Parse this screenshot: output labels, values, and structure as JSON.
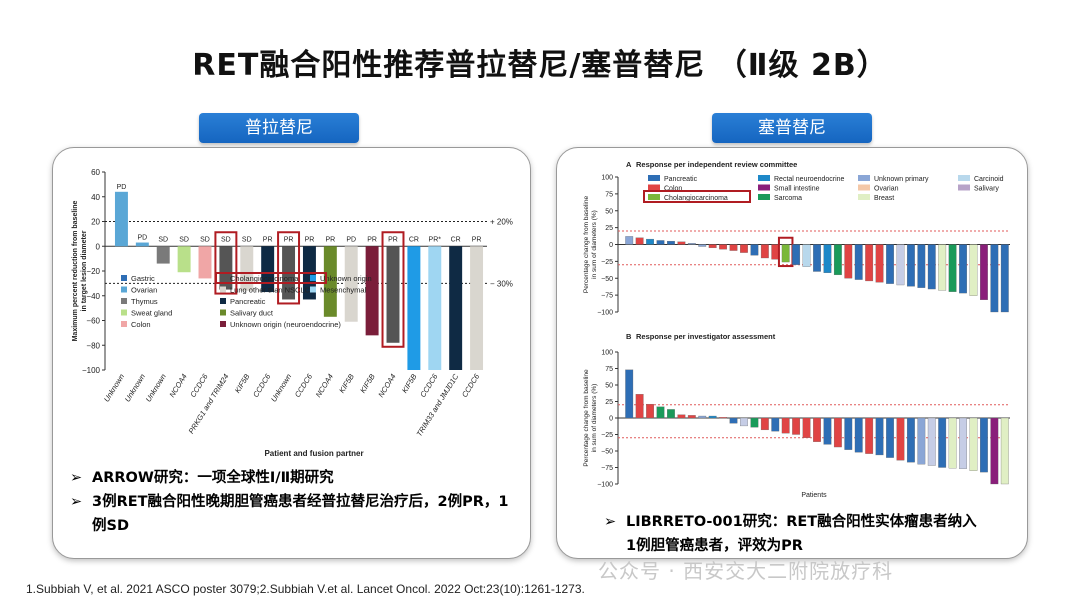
{
  "title": "RET融合阳性推荐普拉替尼/塞普替尼 （Ⅱ级 2B）",
  "left": {
    "pill": "普拉替尼",
    "chart_data": {
      "type": "bar",
      "ylabel": "Maximum percent reduction from baseline in target lesion diameter",
      "xlabel": "Patient and fusion partner",
      "ylim": [
        -100,
        60
      ],
      "yticks": [
        60,
        40,
        20,
        0,
        -20,
        -40,
        -60,
        -80,
        -100
      ],
      "ref_lines": [
        "+ 20%",
        "− 30%"
      ],
      "bars": [
        {
          "cat": "Unknown",
          "value": 44,
          "resp": "PD",
          "tumor": "Ovarian"
        },
        {
          "cat": "Unknown",
          "value": 3,
          "resp": "PD",
          "tumor": "Ovarian"
        },
        {
          "cat": "Unknown",
          "value": -14,
          "resp": "SD",
          "tumor": "Thymus"
        },
        {
          "cat": "NCOA4",
          "value": -21,
          "resp": "SD",
          "tumor": "Sweat gland"
        },
        {
          "cat": "CCDC6",
          "value": -26,
          "resp": "SD",
          "tumor": "Colon"
        },
        {
          "cat": "PRKG1 and TRIM24",
          "value": -35,
          "resp": "SD",
          "tumor": "Cholangiocarcinoma"
        },
        {
          "cat": "KIF5B",
          "value": -36,
          "resp": "SD",
          "tumor": "Lung other than NSCLC"
        },
        {
          "cat": "CCDC6",
          "value": -37,
          "resp": "PR",
          "tumor": "Pancreatic"
        },
        {
          "cat": "Unknown",
          "value": -43,
          "resp": "PR",
          "tumor": "Cholangiocarcinoma"
        },
        {
          "cat": "CCDC6",
          "value": -43,
          "resp": "PR",
          "tumor": "Pancreatic"
        },
        {
          "cat": "NCOA4",
          "value": -57,
          "resp": "PR",
          "tumor": "Salivary duct"
        },
        {
          "cat": "KIF5B",
          "value": -61,
          "resp": "PD",
          "tumor": "Lung other than NSCLC"
        },
        {
          "cat": "KIF5B",
          "value": -72,
          "resp": "PR",
          "tumor": "Unknown origin (neuroendocrine)"
        },
        {
          "cat": "NCOA4",
          "value": -78,
          "resp": "PR",
          "tumor": "Cholangiocarcinoma"
        },
        {
          "cat": "KIF5B",
          "value": -100,
          "resp": "CR",
          "tumor": "Unknown origin"
        },
        {
          "cat": "CCDC6",
          "value": -100,
          "resp": "PR*",
          "tumor": "Mesenchymal"
        },
        {
          "cat": "TRIM33 and JMJD1C",
          "value": -100,
          "resp": "CR",
          "tumor": "Pancreatic"
        },
        {
          "cat": "CCDC6",
          "value": -100,
          "resp": "PR",
          "tumor": "Lung other than NSCLC"
        }
      ],
      "highlight_indices": [
        5,
        8,
        13
      ],
      "legend": [
        {
          "label": "Gastric",
          "color": "#2e6eb5"
        },
        {
          "label": "Ovarian",
          "color": "#5aa7d6"
        },
        {
          "label": "Thymus",
          "color": "#7a7a7a"
        },
        {
          "label": "Sweat gland",
          "color": "#b9e08a"
        },
        {
          "label": "Colon",
          "color": "#f0a6a6"
        },
        {
          "label": "Cholangiocarcinoma",
          "color": "#555555"
        },
        {
          "label": "Lung other than NSCLC",
          "color": "#d9d6cf"
        },
        {
          "label": "Pancreatic",
          "color": "#0f2a44"
        },
        {
          "label": "Salivary duct",
          "color": "#6a8a2a"
        },
        {
          "label": "Unknown origin (neuroendocrine)",
          "color": "#7a1e3a"
        },
        {
          "label": "Unknown origin",
          "color": "#1f9be6"
        },
        {
          "label": "Mesenchymal",
          "color": "#9fd6f2"
        }
      ]
    },
    "bullets": [
      "ARROW研究：一项全球性Ⅰ/Ⅱ期研究",
      "3例RET融合阳性晚期胆管癌患者经普拉替尼治疗后，2例PR，1例SD"
    ]
  },
  "right": {
    "pill": "塞普替尼",
    "chart_data": [
      {
        "type": "bar",
        "panel": "A",
        "title": "Response per independent review committee",
        "ylabel": "Percentage change from baseline in sum of diameters (%)",
        "ylim": [
          -100,
          100
        ],
        "yticks": [
          100,
          75,
          50,
          25,
          0,
          -25,
          -50,
          -75,
          -100
        ],
        "values": [
          12,
          10,
          8,
          6,
          5,
          4,
          2,
          -3,
          -5,
          -7,
          -9,
          -12,
          -16,
          -20,
          -22,
          -26,
          -30,
          -33,
          -40,
          -42,
          -45,
          -50,
          -52,
          -54,
          -56,
          -58,
          -60,
          -62,
          -64,
          -66,
          -68,
          -70,
          -72,
          -76,
          -82,
          -100,
          -100
        ],
        "colors": [
          "#8aa6d6",
          "#e04444",
          "#1e88c8",
          "#2e6eb5",
          "#2e6eb5",
          "#e04444",
          "#8aa6d6",
          "#8aa6d6",
          "#e04444",
          "#e04444",
          "#e04444",
          "#e04444",
          "#2e6eb5",
          "#e04444",
          "#e04444",
          "#7ab83a",
          "#2e6eb5",
          "#b8d8ec",
          "#2e6eb5",
          "#1e88c8",
          "#1a9a5a",
          "#e04444",
          "#2e6eb5",
          "#e04444",
          "#e04444",
          "#2e6eb5",
          "#c6cde6",
          "#2e6eb5",
          "#2e6eb5",
          "#2e6eb5",
          "#e0efc4",
          "#1a9a5a",
          "#2e6eb5",
          "#e0efc4",
          "#8a1f7a",
          "#2e6eb5",
          "#2e6eb5"
        ],
        "highlight_index": 15
      },
      {
        "type": "bar",
        "panel": "B",
        "title": "Response per investigator assessment",
        "ylabel": "Percentage change from baseline in sum of diameters (%)",
        "xlabel": "Patients",
        "ylim": [
          -100,
          100
        ],
        "yticks": [
          100,
          75,
          50,
          25,
          0,
          -25,
          -50,
          -75,
          -100
        ],
        "values": [
          73,
          36,
          21,
          17,
          13,
          5,
          4,
          3,
          3,
          1,
          -8,
          -12,
          -14,
          -18,
          -20,
          -23,
          -25,
          -30,
          -36,
          -40,
          -44,
          -48,
          -52,
          -54,
          -56,
          -60,
          -64,
          -67,
          -70,
          -72,
          -75,
          -76,
          -77,
          -80,
          -82,
          -100,
          -100
        ],
        "colors": [
          "#2e6eb5",
          "#e04444",
          "#e04444",
          "#1a9a5a",
          "#1a9a5a",
          "#e04444",
          "#e04444",
          "#8aa6d6",
          "#1e88c8",
          "#e04444",
          "#2e6eb5",
          "#c6cde6",
          "#1a9a5a",
          "#e04444",
          "#2e6eb5",
          "#e04444",
          "#e04444",
          "#e04444",
          "#e04444",
          "#2e6eb5",
          "#e04444",
          "#2e6eb5",
          "#2e6eb5",
          "#e04444",
          "#2e6eb5",
          "#2e6eb5",
          "#e04444",
          "#2e6eb5",
          "#8aa6d6",
          "#c6cde6",
          "#2e6eb5",
          "#e0efc4",
          "#c6cde6",
          "#e0efc4",
          "#2e6eb5",
          "#8a1f7a",
          "#e0efc4"
        ]
      }
    ],
    "legend": [
      {
        "label": "Pancreatic",
        "color": "#2e6eb5"
      },
      {
        "label": "Rectal neuroendocrine",
        "color": "#1e88c8"
      },
      {
        "label": "Unknown primary",
        "color": "#8aa6d6"
      },
      {
        "label": "Carcinoid",
        "color": "#b8d8ec"
      },
      {
        "label": "Colon",
        "color": "#e04444"
      },
      {
        "label": "Small intestine",
        "color": "#8a1f7a"
      },
      {
        "label": "Ovarian",
        "color": "#f4c8a8"
      },
      {
        "label": "Salivary",
        "color": "#b7a3c8"
      },
      {
        "label": "Cholangiocarcinoma",
        "color": "#7ab83a"
      },
      {
        "label": "Sarcoma",
        "color": "#1a9a5a"
      },
      {
        "label": "Breast",
        "color": "#e0efc4"
      }
    ],
    "bullets": [
      "LIBRRETO-001研究：RET融合阳性实体瘤患者纳入1例胆管癌患者，评效为PR"
    ]
  },
  "citation": "1.Subbiah V, et al. 2021 ASCO poster 3079;2.Subbiah V.et al. Lancet Oncol. 2022 Oct:23(10):1261-1273.",
  "watermark": "公众号 · 西安交大二附院放疗科"
}
